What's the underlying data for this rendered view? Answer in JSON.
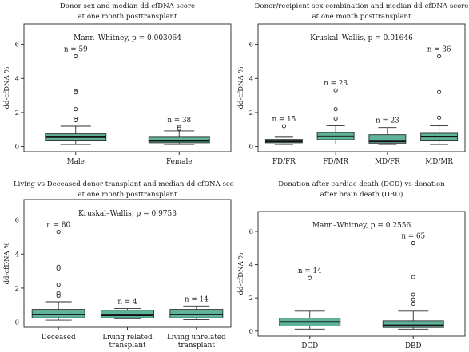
{
  "colors": {
    "box_fill": "#5fb39b",
    "box_stroke": "#2b2b2b",
    "median": "#111111"
  },
  "chart_data": [
    {
      "type": "box",
      "title": "Donor sex and median dd-cfDNA score\nat one month posttransplant",
      "ylabel": "dd-cfDNA %",
      "ylim": [
        -0.3,
        7.2
      ],
      "yticks": [
        0,
        2,
        4,
        6
      ],
      "test_label": "Mann–Whitney, p = 0.003064",
      "groups": [
        {
          "label": "Male",
          "n_label": "n = 59",
          "whisker_low": 0.12,
          "q1": 0.33,
          "median": 0.55,
          "q3": 0.75,
          "whisker_high": 1.2,
          "outliers": [
            5.3,
            3.25,
            3.18,
            2.2,
            1.65,
            1.55
          ]
        },
        {
          "label": "Female",
          "n_label": "n = 38",
          "whisker_low": 0.12,
          "q1": 0.22,
          "median": 0.33,
          "q3": 0.55,
          "whisker_high": 0.92,
          "outliers": [
            1.15,
            1.05
          ]
        }
      ]
    },
    {
      "type": "box",
      "title": "Donor/recipient sex combination and median dd-cfDNA score\nat one month posttransplant",
      "ylabel": "dd-cfDNA %",
      "ylim": [
        -0.3,
        7.2
      ],
      "yticks": [
        0,
        2,
        4,
        6
      ],
      "test_label": "Kruskal–Wallis, p = 0.01646",
      "groups": [
        {
          "label": "FD/FR",
          "n_label": "n = 15",
          "whisker_low": 0.12,
          "q1": 0.22,
          "median": 0.3,
          "q3": 0.42,
          "whisker_high": 0.55,
          "outliers": [
            1.2
          ]
        },
        {
          "label": "FD/MR",
          "n_label": "n = 23",
          "whisker_low": 0.15,
          "q1": 0.4,
          "median": 0.6,
          "q3": 0.82,
          "whisker_high": 1.22,
          "outliers": [
            3.3,
            2.2,
            1.65
          ]
        },
        {
          "label": "MD/FR",
          "n_label": "n = 23",
          "whisker_low": 0.12,
          "q1": 0.2,
          "median": 0.3,
          "q3": 0.7,
          "whisker_high": 1.12,
          "outliers": []
        },
        {
          "label": "MD/MR",
          "n_label": "n = 36",
          "whisker_low": 0.12,
          "q1": 0.33,
          "median": 0.58,
          "q3": 0.78,
          "whisker_high": 1.22,
          "outliers": [
            5.3,
            3.2,
            1.7
          ]
        }
      ]
    },
    {
      "type": "box",
      "title": "Living vs Deceased donor transplant and median dd-cfDNA score\nat one month posttransplant",
      "ylabel": "dd-cfDNA %",
      "ylim": [
        -0.3,
        7.2
      ],
      "yticks": [
        0,
        2,
        4,
        6
      ],
      "test_label": "Kruskal–Wallis, p = 0.9753",
      "groups": [
        {
          "label": "Deceased",
          "n_label": "n = 80",
          "whisker_low": 0.12,
          "q1": 0.25,
          "median": 0.45,
          "q3": 0.75,
          "whisker_high": 1.2,
          "outliers": [
            5.3,
            3.25,
            3.15,
            2.2,
            1.7,
            1.55
          ]
        },
        {
          "label": "Living related\ntransplant",
          "n_label": "n = 4",
          "whisker_low": 0.2,
          "q1": 0.25,
          "median": 0.4,
          "q3": 0.7,
          "whisker_high": 0.8,
          "outliers": []
        },
        {
          "label": "Living unrelated\ntransplant",
          "n_label": "n = 14",
          "whisker_low": 0.15,
          "q1": 0.25,
          "median": 0.45,
          "q3": 0.75,
          "whisker_high": 0.95,
          "outliers": []
        }
      ]
    },
    {
      "type": "box",
      "title": "Donation after cardiac death (DCD) vs donation\nafter brain death (DBD)",
      "ylabel": "dd-cfDNA %",
      "ylim": [
        -0.3,
        7.2
      ],
      "yticks": [
        0,
        2,
        4,
        6
      ],
      "test_label": "Mann–Whitney, p = 0.2556",
      "groups": [
        {
          "label": "DCD",
          "n_label": "n = 14",
          "whisker_low": 0.12,
          "q1": 0.3,
          "median": 0.55,
          "q3": 0.78,
          "whisker_high": 1.2,
          "outliers": [
            3.2
          ]
        },
        {
          "label": "DBD",
          "n_label": "n = 65",
          "whisker_low": 0.12,
          "q1": 0.22,
          "median": 0.35,
          "q3": 0.62,
          "whisker_high": 1.2,
          "outliers": [
            5.3,
            3.25,
            2.2,
            1.9,
            1.65
          ]
        }
      ]
    }
  ]
}
